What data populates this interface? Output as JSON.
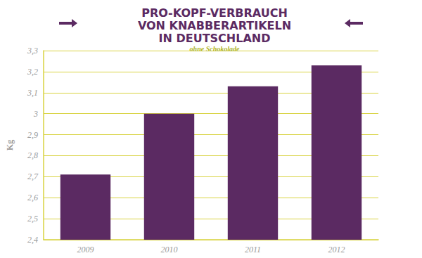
{
  "chart_data": {
    "type": "bar",
    "title": "PRO-KOPF-VERBRAUCH\nVON KNABBERARTIKELN\nIN DEUTSCHLAND",
    "subtitle": "ohne Schokolade",
    "y_label": "Kg",
    "categories": [
      "2009",
      "2010",
      "2011",
      "2012"
    ],
    "values": [
      2.71,
      3.0,
      3.13,
      3.23
    ],
    "color": "#5b2a62",
    "ylim": [
      2.4,
      3.3
    ],
    "yticks": [
      {
        "value": 2.4,
        "label": "2,4"
      },
      {
        "value": 2.5,
        "label": "2,5"
      },
      {
        "value": 2.6,
        "label": "2,6"
      },
      {
        "value": 2.7,
        "label": "2,7"
      },
      {
        "value": 2.8,
        "label": "2,8"
      },
      {
        "value": 2.9,
        "label": "2,9"
      },
      3,
      {
        "value": 3.1,
        "label": "3,1"
      },
      {
        "value": 3.2,
        "label": "3,2"
      },
      {
        "value": 3.3,
        "label": "3,3"
      }
    ],
    "grid": true
  }
}
